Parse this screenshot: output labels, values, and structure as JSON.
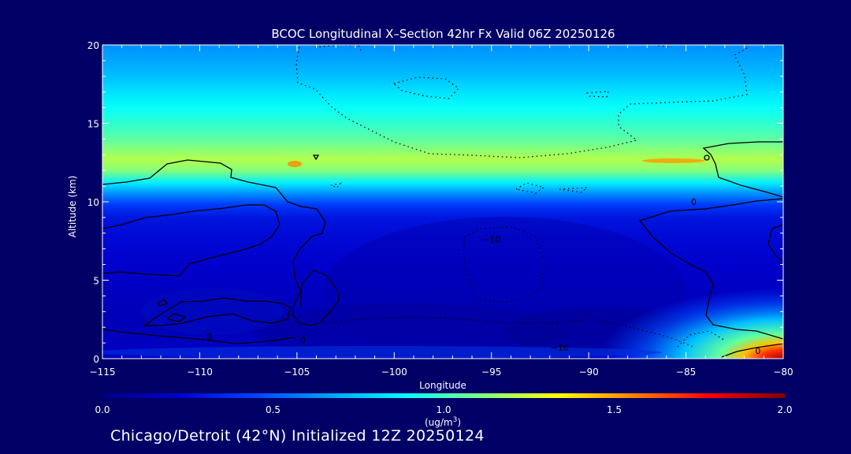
{
  "title": "BCOC Longitudinal X–Section 42hr  Fx Valid 06Z 20250126",
  "footer": "Chicago/Detroit (42°N) Initialized 12Z 20250124",
  "chart_data": {
    "type": "heatmap",
    "title": "BCOC Longitudinal X–Section 42hr  Fx Valid 06Z 20250126",
    "xlabel": "Longitude",
    "ylabel": "Altitude (km)",
    "xlim": [
      -115,
      -80
    ],
    "ylim": [
      0,
      20
    ],
    "x_ticks": [
      -115,
      -110,
      -105,
      -100,
      -95,
      -90,
      -85,
      -80
    ],
    "y_ticks": [
      0,
      5,
      10,
      15,
      20
    ],
    "colorbar": {
      "unit_prefix": "(ug/m",
      "unit_exp": "3",
      "unit_suffix": ")",
      "min": 0.0,
      "max": 2.0,
      "ticks": [
        "0.0",
        "0.5",
        "1.0",
        "1.5",
        "2.0"
      ],
      "colors": [
        "#000080",
        "#0000cd",
        "#0040ff",
        "#00a0ff",
        "#00ffff",
        "#80ff80",
        "#ffff00",
        "#ff8000",
        "#ff0000",
        "#800000"
      ]
    },
    "altitude_profile": [
      {
        "km": 0.0,
        "value": 0.2
      },
      {
        "km": 1.0,
        "value": 0.18
      },
      {
        "km": 1.5,
        "value": 0.17
      },
      {
        "km": 2.5,
        "value": 0.16
      },
      {
        "km": 4.0,
        "value": 0.18
      },
      {
        "km": 6.0,
        "value": 0.22
      },
      {
        "km": 8.0,
        "value": 0.26
      },
      {
        "km": 9.0,
        "value": 0.3
      },
      {
        "km": 9.8,
        "value": 0.42
      },
      {
        "km": 10.5,
        "value": 0.62
      },
      {
        "km": 11.2,
        "value": 0.85
      },
      {
        "km": 12.0,
        "value": 1.12
      },
      {
        "km": 12.7,
        "value": 1.2
      },
      {
        "km": 13.3,
        "value": 1.13
      },
      {
        "km": 14.0,
        "value": 1.05
      },
      {
        "km": 15.0,
        "value": 0.97
      },
      {
        "km": 16.0,
        "value": 0.9
      },
      {
        "km": 17.0,
        "value": 0.82
      },
      {
        "km": 18.0,
        "value": 0.74
      },
      {
        "km": 19.0,
        "value": 0.68
      },
      {
        "km": 20.0,
        "value": 0.63
      }
    ],
    "contour_labels": [
      {
        "text": "0",
        "x": -84.6,
        "y": 9.8
      },
      {
        "text": "0",
        "x": -81.3,
        "y": 0.3
      },
      {
        "text": "0",
        "x": -109.5,
        "y": 1.2
      },
      {
        "text": "0",
        "x": -104.7,
        "y": 1.0
      },
      {
        "text": "−10",
        "x": -95.0,
        "y": 7.4
      },
      {
        "text": "−10",
        "x": -91.5,
        "y": 0.5
      }
    ]
  }
}
